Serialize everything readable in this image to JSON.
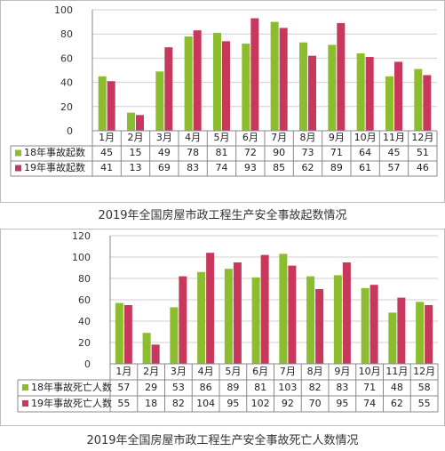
{
  "chart_data": [
    {
      "type": "bar",
      "caption": "2019年全国房屋市政工程生产安全事故起数情况",
      "categories": [
        "1月",
        "2月",
        "3月",
        "4月",
        "5月",
        "6月",
        "7月",
        "8月",
        "9月",
        "10月",
        "11月",
        "12月"
      ],
      "series": [
        {
          "name": "18年事故起数",
          "values": [
            45,
            15,
            49,
            78,
            81,
            72,
            90,
            73,
            71,
            64,
            45,
            51
          ],
          "color": "#8bbd2e"
        },
        {
          "name": "19年事故起数",
          "values": [
            41,
            13,
            69,
            83,
            74,
            93,
            85,
            62,
            89,
            61,
            57,
            46
          ],
          "color": "#c8385c"
        }
      ],
      "yticks": [
        0,
        20,
        40,
        60,
        80,
        100
      ],
      "ylim": [
        0,
        100
      ],
      "grid": true,
      "legend": "data-table"
    },
    {
      "type": "bar",
      "caption": "2019年全国房屋市政工程生产安全事故死亡人数情况",
      "categories": [
        "1月",
        "2月",
        "3月",
        "4月",
        "5月",
        "6月",
        "7月",
        "8月",
        "9月",
        "10月",
        "11月",
        "12月"
      ],
      "series": [
        {
          "name": "18年事故死亡人数",
          "values": [
            57,
            29,
            53,
            86,
            89,
            81,
            103,
            82,
            83,
            71,
            48,
            58
          ],
          "color": "#8bbd2e"
        },
        {
          "name": "19年事故死亡人数",
          "values": [
            55,
            18,
            82,
            104,
            95,
            102,
            92,
            70,
            95,
            74,
            62,
            55
          ],
          "color": "#c8385c"
        }
      ],
      "yticks": [
        0,
        20,
        40,
        60,
        80,
        100,
        120
      ],
      "ylim": [
        0,
        120
      ],
      "grid": true,
      "legend": "data-table"
    }
  ]
}
